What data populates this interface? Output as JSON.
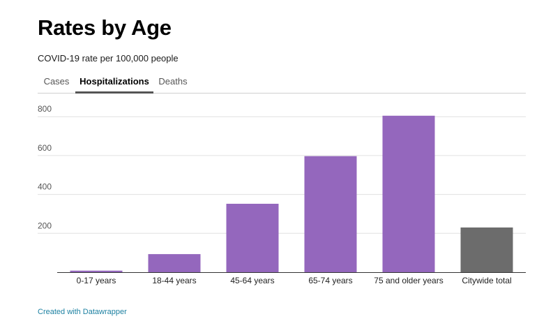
{
  "title": "Rates by Age",
  "subtitle": "COVID-19 rate per 100,000 people",
  "tabs": [
    {
      "label": "Cases",
      "active": false
    },
    {
      "label": "Hospitalizations",
      "active": true
    },
    {
      "label": "Deaths",
      "active": false
    }
  ],
  "footer": {
    "label": "Created with Datawrapper"
  },
  "chart_data": {
    "type": "bar",
    "categories": [
      "0-17 years",
      "18-44 years",
      "45-64 years",
      "65-74 years",
      "75 and older years",
      "Citywide total"
    ],
    "values": [
      8,
      93,
      352,
      597,
      805,
      230
    ],
    "bar_colors": [
      "#9467bd",
      "#9467bd",
      "#9467bd",
      "#9467bd",
      "#9467bd",
      "#6c6c6c"
    ],
    "yticks": [
      200,
      400,
      600,
      800
    ],
    "ylim": [
      0,
      800
    ],
    "grid": true
  }
}
